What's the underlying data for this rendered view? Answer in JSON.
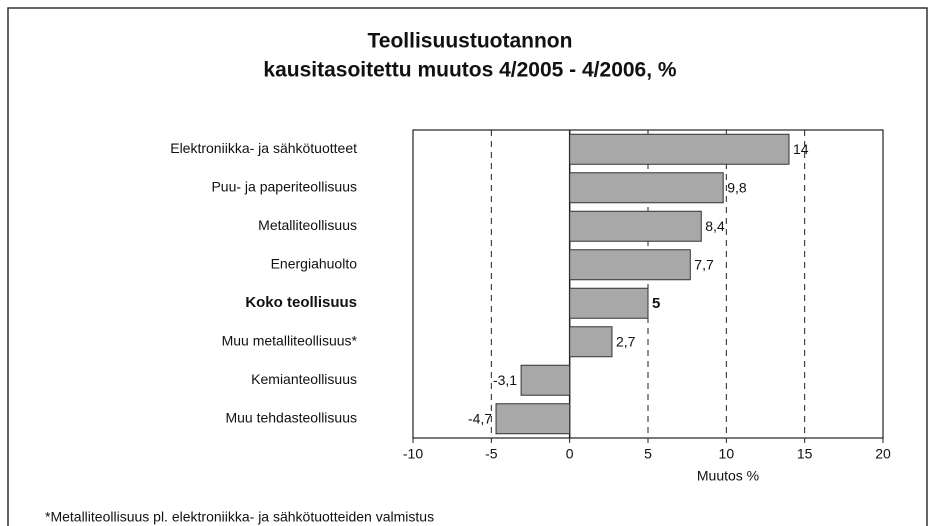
{
  "chart_data": {
    "type": "hbar",
    "title": "Teollisuustuotannon",
    "subtitle": "kausitasoitettu muutos 4/2005 - 4/2006, %",
    "categories": [
      "Elektroniikka- ja sähkötuotteet",
      "Puu- ja paperiteollisuus",
      "Metalliteollisuus",
      "Energiahuolto",
      "Koko teollisuus",
      "Muu metalliteollisuus*",
      "Kemianteollisuus",
      "Muu tehdasteollisuus"
    ],
    "values": [
      14,
      9.8,
      8.4,
      7.7,
      5,
      2.7,
      -3.1,
      -4.7
    ],
    "value_labels": [
      "14",
      "9,8",
      "8,4",
      "7,7",
      "5",
      "2,7",
      "-3,1",
      "-4,7"
    ],
    "color": "#a8a8a8",
    "xlim": [
      -10,
      20
    ],
    "xticks": [
      -10,
      -5,
      0,
      5,
      10,
      15,
      20
    ],
    "xlabel": "Muutos %",
    "grid": true,
    "footnote": "*Metalliteollisuus pl. elektroniikka- ja sähkötuotteiden valmistus"
  }
}
